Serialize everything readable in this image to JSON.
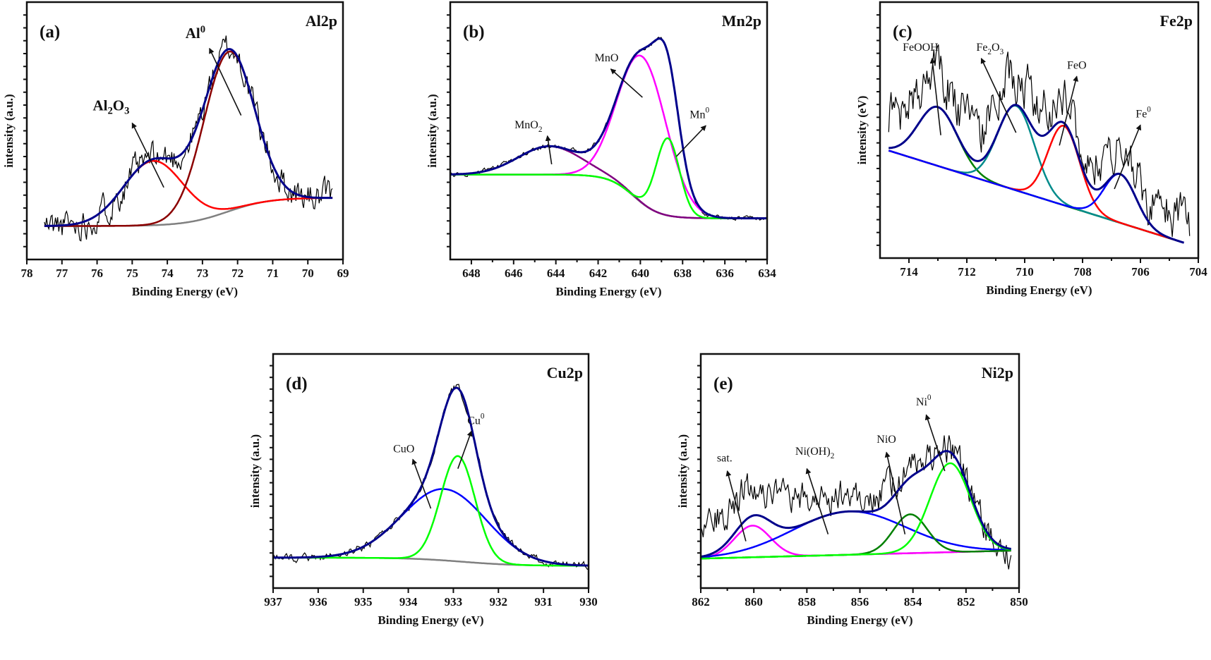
{
  "chart_data": [
    {
      "type": "line",
      "panel_label": "(a)",
      "title": "Al2p",
      "xlabel": "Binding Energy (eV)",
      "ylabel": "intensity (a.u.)",
      "xlim": [
        78,
        69
      ],
      "ylim": [
        0,
        100
      ],
      "xticks": [
        78,
        77,
        76,
        75,
        74,
        73,
        72,
        71,
        70,
        69
      ],
      "grid": false,
      "annotation_style": "bold",
      "baseline": {
        "shape": "step",
        "start": [
          77.5,
          13
        ],
        "end": [
          69.3,
          24
        ],
        "step_center": 72.3,
        "color": "#808080"
      },
      "envelope_color": "#00008b",
      "raw_color": "#000000",
      "components": [
        {
          "name": "Al2O3",
          "center": 74.4,
          "fwhm": 2.0,
          "height": 25,
          "color": "#ff0000"
        },
        {
          "name": "Al0",
          "center": 72.25,
          "fwhm": 1.7,
          "height": 62,
          "color": "#8b0000"
        }
      ],
      "annotations": [
        {
          "parts": [
            [
              "Al",
              ""
            ],
            [
              "2",
              "sub"
            ],
            [
              "O",
              ""
            ],
            [
              "3",
              "sub"
            ]
          ],
          "at": [
            75.6,
            58
          ],
          "arrow_from": [
            74.1,
            28
          ],
          "arrow_to": [
            75.0,
            53
          ]
        },
        {
          "parts": [
            [
              "Al",
              ""
            ],
            [
              "0",
              "sup"
            ]
          ],
          "at": [
            73.2,
            86
          ],
          "arrow_from": [
            71.9,
            56
          ],
          "arrow_to": [
            72.8,
            82
          ]
        }
      ]
    },
    {
      "type": "line",
      "panel_label": "(b)",
      "title": "Mn2p",
      "xlabel": "Binding Energy (eV)",
      "ylabel": "intensity (a.u.)",
      "xlim": [
        649,
        634
      ],
      "ylim": [
        0,
        100
      ],
      "xticks": [
        648,
        646,
        644,
        642,
        640,
        638,
        636,
        634
      ],
      "grid": false,
      "annotation_style": "normal",
      "baseline": {
        "shape": "step",
        "start": [
          649,
          33
        ],
        "end": [
          634,
          16
        ],
        "step_center": 640.3,
        "color": "#808080"
      },
      "envelope_color": "#00008b",
      "raw_color": "#000000",
      "components": [
        {
          "name": "MnO2",
          "center": 644.3,
          "fwhm": 3.5,
          "height": 11,
          "color": "#800080"
        },
        {
          "name": "MnO",
          "center": 639.9,
          "fwhm": 2.7,
          "height": 57,
          "color": "#ff00ff"
        },
        {
          "name": "Mn0",
          "center": 638.7,
          "fwhm": 1.3,
          "height": 30,
          "color": "#00ff00"
        }
      ],
      "annotations": [
        {
          "parts": [
            [
              "MnO",
              ""
            ],
            [
              "2",
              "sub"
            ]
          ],
          "at": [
            645.3,
            51
          ],
          "arrow_from": [
            644.2,
            37
          ],
          "arrow_to": [
            644.4,
            48
          ]
        },
        {
          "parts": [
            [
              "MnO",
              ""
            ]
          ],
          "at": [
            641.6,
            77
          ],
          "arrow_from": [
            639.9,
            63
          ],
          "arrow_to": [
            641.4,
            74
          ]
        },
        {
          "parts": [
            [
              "Mn",
              ""
            ],
            [
              "0",
              "sup"
            ]
          ],
          "at": [
            637.2,
            55
          ],
          "arrow_from": [
            638.3,
            40
          ],
          "arrow_to": [
            636.9,
            52
          ]
        }
      ]
    },
    {
      "type": "line",
      "panel_label": "(c)",
      "title": "Fe2p",
      "xlabel": "Binding Energy (eV)",
      "ylabel": "intensity (eV)",
      "xlim": [
        715,
        704
      ],
      "ylim": [
        0,
        100
      ],
      "xticks": [
        714,
        712,
        710,
        708,
        706,
        704
      ],
      "grid": false,
      "annotation_style": "normal",
      "baseline": {
        "shape": "linear",
        "start": [
          714.7,
          42
        ],
        "end": [
          704.5,
          6
        ],
        "color": "#808080"
      },
      "envelope_color": "#00008b",
      "raw_color": "#000000",
      "components": [
        {
          "name": "FeOOH",
          "center": 713.0,
          "fwhm": 1.6,
          "height": 23,
          "color": "#008000"
        },
        {
          "name": "Fe2O3",
          "center": 710.3,
          "fwhm": 1.5,
          "height": 33,
          "color": "#008b8b"
        },
        {
          "name": "FeO",
          "center": 708.65,
          "fwhm": 1.3,
          "height": 31,
          "color": "#ff0000"
        },
        {
          "name": "Fe0",
          "center": 706.7,
          "fwhm": 1.3,
          "height": 19,
          "color": "#0000ff"
        }
      ],
      "annotations": [
        {
          "parts": [
            [
              "FeOOH",
              ""
            ]
          ],
          "at": [
            713.6,
            81
          ],
          "arrow_from": [
            712.9,
            48
          ],
          "arrow_to": [
            713.2,
            78
          ]
        },
        {
          "parts": [
            [
              "Fe",
              ""
            ],
            [
              "2",
              "sub"
            ],
            [
              "O",
              ""
            ],
            [
              "3",
              "sub"
            ]
          ],
          "at": [
            711.2,
            81
          ],
          "arrow_from": [
            710.3,
            49
          ],
          "arrow_to": [
            711.5,
            78
          ]
        },
        {
          "parts": [
            [
              "FeO",
              ""
            ]
          ],
          "at": [
            708.2,
            74
          ],
          "arrow_from": [
            708.8,
            44
          ],
          "arrow_to": [
            708.2,
            71
          ]
        },
        {
          "parts": [
            [
              "Fe",
              ""
            ],
            [
              "0",
              "sup"
            ]
          ],
          "at": [
            705.9,
            55
          ],
          "arrow_from": [
            706.9,
            27
          ],
          "arrow_to": [
            706.0,
            52
          ]
        }
      ]
    },
    {
      "type": "line",
      "panel_label": "(d)",
      "title": "Cu2p",
      "xlabel": "Binding Energy (eV)",
      "ylabel": "intensity (a.u.)",
      "xlim": [
        937,
        930
      ],
      "ylim": [
        0,
        100
      ],
      "xticks": [
        937,
        936,
        935,
        934,
        933,
        932,
        931,
        930
      ],
      "grid": false,
      "annotation_style": "normal",
      "baseline": {
        "shape": "step",
        "start": [
          937,
          13
        ],
        "end": [
          930,
          9.5
        ],
        "step_center": 932.8,
        "color": "#808080"
      },
      "envelope_color": "#00008b",
      "raw_color": "#000000",
      "components": [
        {
          "name": "CuO",
          "center": 933.2,
          "fwhm": 2.2,
          "height": 30.5,
          "color": "#0000ff"
        },
        {
          "name": "Cu0",
          "center": 932.9,
          "fwhm": 0.9,
          "height": 45,
          "color": "#00ff00"
        }
      ],
      "annotations": [
        {
          "parts": [
            [
              "CuO",
              ""
            ]
          ],
          "at": [
            934.1,
            58
          ],
          "arrow_from": [
            933.5,
            34
          ],
          "arrow_to": [
            933.9,
            55
          ]
        },
        {
          "parts": [
            [
              "Cu",
              ""
            ],
            [
              "0",
              "sup"
            ]
          ],
          "at": [
            932.5,
            70
          ],
          "arrow_from": [
            932.9,
            51
          ],
          "arrow_to": [
            932.6,
            67
          ]
        }
      ]
    },
    {
      "type": "line",
      "panel_label": "(e)",
      "title": "Ni2p",
      "xlabel": "Binding Energy (eV)",
      "ylabel": "intensity (a.u.)",
      "xlim": [
        862,
        850
      ],
      "ylim": [
        0,
        100
      ],
      "xticks": [
        862,
        860,
        858,
        856,
        854,
        852,
        850
      ],
      "grid": false,
      "annotation_style": "normal",
      "baseline": {
        "shape": "linear",
        "start": [
          862,
          12.6
        ],
        "end": [
          850.3,
          16
        ],
        "color": "#808080"
      },
      "envelope_color": "#00008b",
      "raw_color": "#000000",
      "components": [
        {
          "name": "sat.",
          "center": 860.05,
          "fwhm": 1.6,
          "height": 13.5,
          "color": "#ff00ff"
        },
        {
          "name": "Ni(OH)2",
          "center": 856.4,
          "fwhm": 5.0,
          "height": 18.5,
          "color": "#0000ff"
        },
        {
          "name": "NiO",
          "center": 854.1,
          "fwhm": 1.5,
          "height": 16.6,
          "color": "#008000"
        },
        {
          "name": "Ni0",
          "center": 852.6,
          "fwhm": 1.8,
          "height": 38,
          "color": "#00ff00"
        }
      ],
      "annotations": [
        {
          "parts": [
            [
              "sat.",
              ""
            ]
          ],
          "at": [
            861.1,
            54
          ],
          "arrow_from": [
            860.3,
            20
          ],
          "arrow_to": [
            861.0,
            50
          ]
        },
        {
          "parts": [
            [
              "Ni(OH)",
              ""
            ],
            [
              "2",
              "sub"
            ]
          ],
          "at": [
            857.7,
            57
          ],
          "arrow_from": [
            857.2,
            23
          ],
          "arrow_to": [
            858.0,
            51
          ]
        },
        {
          "parts": [
            [
              "NiO",
              ""
            ]
          ],
          "at": [
            855.0,
            62
          ],
          "arrow_from": [
            854.3,
            23
          ],
          "arrow_to": [
            855.0,
            58
          ]
        },
        {
          "parts": [
            [
              "Ni",
              ""
            ],
            [
              "0",
              "sup"
            ]
          ],
          "at": [
            853.6,
            78
          ],
          "arrow_from": [
            852.8,
            50
          ],
          "arrow_to": [
            853.5,
            74
          ]
        }
      ]
    }
  ]
}
